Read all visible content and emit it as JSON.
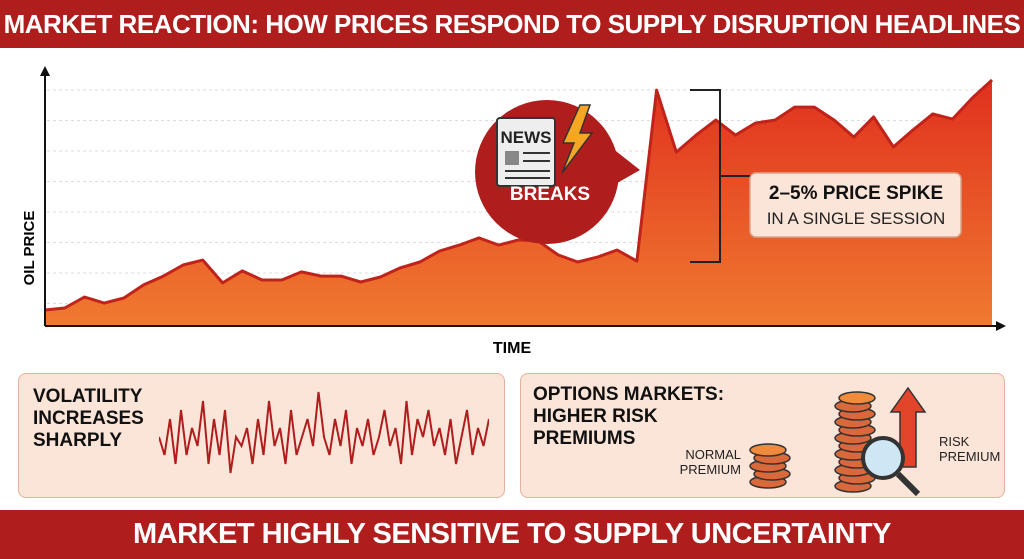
{
  "header": {
    "title": "MARKET REACTION: HOW PRICES RESPOND TO SUPPLY DISRUPTION HEADLINES"
  },
  "footer": {
    "text": "MARKET HIGHLY SENSITIVE TO SUPPLY UNCERTAINTY"
  },
  "colors": {
    "brand_red": "#b01d1d",
    "area_top": "#e0301e",
    "area_bottom": "#f07a30",
    "panel_bg": "#fbe4d8",
    "lightning": "#f5a623"
  },
  "chart_data": {
    "type": "area",
    "xlabel": "TIME",
    "ylabel": "OIL PRICE",
    "grid": true,
    "series": [
      {
        "values": [
          6.5,
          7.3,
          11.8,
          9.3,
          11.4,
          16.7,
          20.3,
          24.8,
          26.8,
          17.5,
          22.4,
          18.7,
          18.7,
          22,
          20.3,
          20.3,
          17.9,
          19.9,
          23.6,
          26,
          30.5,
          32.9,
          35.8,
          32.9,
          35,
          34.6,
          28.9,
          26,
          28,
          30.9,
          26.4,
          95.9,
          70.7,
          77.6,
          83.7,
          77.6,
          82.5,
          83.7,
          89,
          89,
          83.7,
          76.8,
          85,
          72.8,
          79.7,
          86.2,
          84.1,
          92.7,
          100
        ]
      }
    ],
    "annotations": {
      "news_top": "NEWS",
      "news_bottom": "BREAKS",
      "icons": [
        "newspaper-icon",
        "lightning-icon"
      ],
      "spike_title": "2–5% PRICE SPIKE",
      "spike_sub": "IN A SINGLE SESSION"
    }
  },
  "volatility": {
    "title_lines": [
      "VOLATILITY",
      "INCREASES",
      "SHARPLY"
    ],
    "values": [
      5,
      3,
      7,
      2,
      8,
      3,
      6,
      4,
      9,
      2,
      7,
      3,
      8,
      1,
      5,
      4,
      6,
      2,
      7,
      3,
      9,
      4,
      6,
      2,
      8,
      3,
      5,
      7,
      4,
      10,
      5,
      3,
      7,
      4,
      8,
      2,
      6,
      4,
      7,
      3,
      5,
      8,
      4,
      6,
      2,
      9,
      3,
      7,
      5,
      8,
      4,
      6,
      3,
      7,
      2,
      5,
      8,
      3,
      6,
      4,
      7
    ]
  },
  "options": {
    "title_lines": [
      "OPTIONS MARKETS:",
      "HIGHER RISK",
      "PREMIUMS"
    ],
    "normal_lines": [
      "NORMAL",
      "PREMIUM"
    ],
    "risk_lines": [
      "RISK",
      "PREMIUM"
    ],
    "icons": [
      "coin-stack-icon",
      "magnifier-icon",
      "arrow-up-icon"
    ]
  }
}
